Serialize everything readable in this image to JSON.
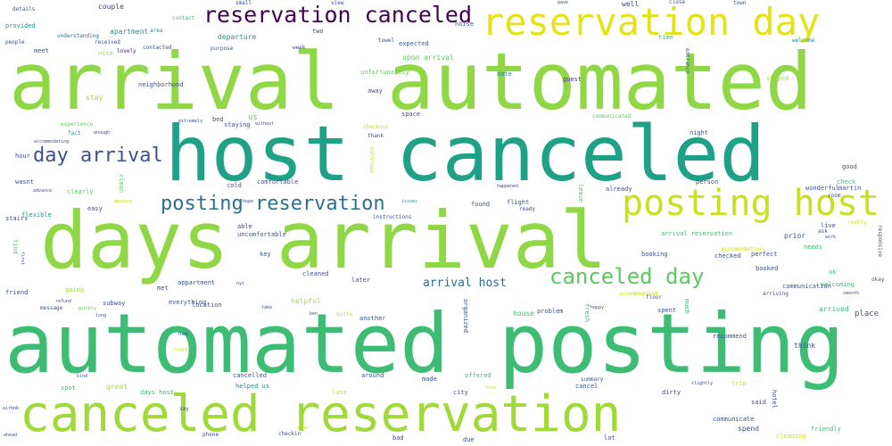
{
  "palette": {
    "yellow": "#d5e21a",
    "lime": "#8fd744",
    "green": "#3dbc74",
    "teal": "#1fa187",
    "blue": "#2d708e",
    "navy": "#3b528b",
    "purple": "#440154",
    "darkpurple": "#482173"
  },
  "big_words": [
    {
      "id": "arrival-automated",
      "text": "arrival automated"
    },
    {
      "id": "host-canceled",
      "text": "host canceled"
    },
    {
      "id": "days-arrival",
      "text": "days arrival"
    },
    {
      "id": "automated-posting",
      "text": "automated posting"
    },
    {
      "id": "canceled-reservation",
      "text": "canceled reservation"
    },
    {
      "id": "reservation-day",
      "text": "reservation day"
    },
    {
      "id": "reservation-canceled",
      "text": "reservation canceled"
    },
    {
      "id": "posting-host",
      "text": "posting host"
    },
    {
      "id": "posting-reservation",
      "text": "posting reservation"
    },
    {
      "id": "day-arrival",
      "text": "day arrival"
    },
    {
      "id": "canceled-day",
      "text": "canceled day"
    },
    {
      "id": "arrival-host",
      "text": "arrival host"
    }
  ],
  "small_words": [
    "details",
    "provided",
    "people",
    "couple",
    "area",
    "contact",
    "understanding",
    "received",
    "lovely",
    "contacted",
    "meet",
    "nice",
    "small",
    "view",
    "noise",
    "well",
    "close",
    "town",
    "gave",
    "time",
    "welcome",
    "entrance",
    "apartment",
    "departure",
    "purpose",
    "two",
    "week",
    "expected",
    "towel",
    "upon arrival",
    "unfortunately",
    "date",
    "guest",
    "neighborhood",
    "stay",
    "away",
    "stayed",
    "experience",
    "fact",
    "enough",
    "extremely",
    "bed",
    "staying",
    "us",
    "without",
    "checkout",
    "thank",
    "space",
    "communicated",
    "night",
    "bathroom",
    "accommodating",
    "hour",
    "wasnt",
    "clean",
    "advance",
    "clearly",
    "amazing",
    "cold",
    "comfortable",
    "hope",
    "happened",
    "found",
    "flight",
    "ready",
    "already",
    "leave",
    "person",
    "good",
    "check",
    "wonderful",
    "martin",
    "room",
    "really",
    "stairs",
    "flexible",
    "easy",
    "able",
    "uncomfortable",
    "instructions",
    "issues",
    "live",
    "ask",
    "work",
    "find",
    "first",
    "key",
    "booking",
    "checked",
    "perfect",
    "prior",
    "needs",
    "ok",
    "welcoming",
    "arrival reservation",
    "accommodation",
    "responsive",
    "friend",
    "going",
    "subway",
    "cleaned",
    "later",
    "booked",
    "communication",
    "arriving",
    "smooth",
    "okay",
    "helpful",
    "message",
    "everything",
    "appartment",
    "met",
    "location",
    "refund",
    "quickly",
    "long",
    "nyc",
    "take",
    "organized",
    "floor",
    "accommodated",
    "happy",
    "spent",
    "much",
    "arrived",
    "place",
    "ben",
    "quite",
    "another",
    "house",
    "problem",
    "fresh",
    "recommend",
    "think",
    "new",
    "host",
    "cancelled",
    "helped us",
    "around",
    "made",
    "offered",
    "city",
    "summary",
    "trip",
    "cancel",
    "slightly",
    "dirty",
    "said",
    "hotel",
    "great",
    "days host",
    "spot",
    "kind",
    "say",
    "late",
    "airbnb",
    "checkin",
    "phone",
    "anne",
    "ahead",
    "due",
    "lot",
    "spend",
    "communicate",
    "friendly",
    "cleaning",
    "fine",
    "bad"
  ]
}
